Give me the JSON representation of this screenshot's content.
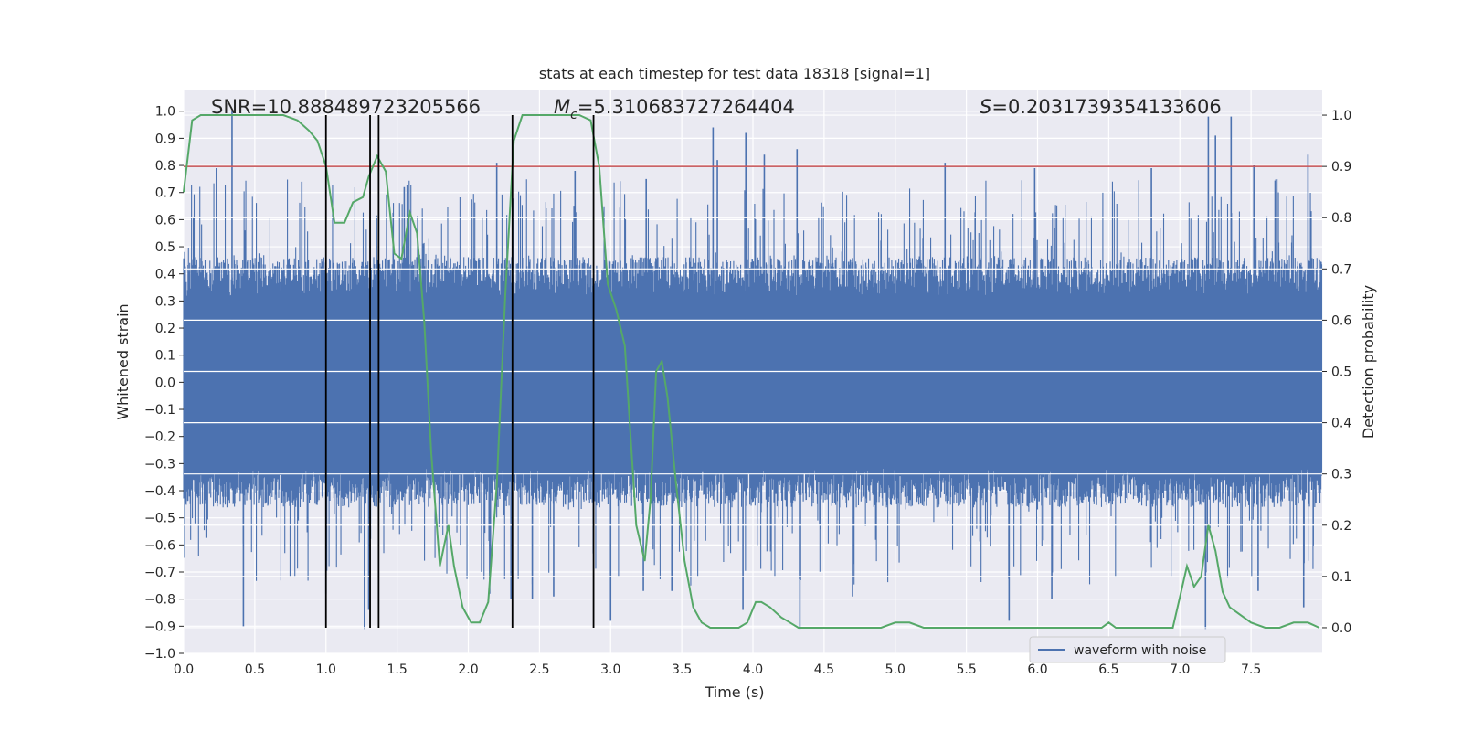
{
  "chart_data": {
    "type": "line",
    "title": "stats at each timestep for test data 18318 [signal=1]",
    "xlabel": "Time (s)",
    "ylabel": "Whitened strain",
    "y2label": "Detection probability",
    "xlim": [
      0,
      8
    ],
    "ylim": [
      -1.0,
      1.08
    ],
    "y2lim": [
      -0.05,
      1.05
    ],
    "x_ticks": [
      "0.0",
      "0.5",
      "1.0",
      "1.5",
      "2.0",
      "2.5",
      "3.0",
      "3.5",
      "4.0",
      "4.5",
      "5.0",
      "5.5",
      "6.0",
      "6.5",
      "7.0",
      "7.5"
    ],
    "y_ticks": [
      "-1.0",
      "-0.9",
      "-0.8",
      "-0.7",
      "-0.6",
      "-0.5",
      "-0.4",
      "-0.3",
      "-0.2",
      "-0.1",
      "0.0",
      "0.1",
      "0.2",
      "0.3",
      "0.4",
      "0.5",
      "0.6",
      "0.7",
      "0.8",
      "0.9",
      "1.0"
    ],
    "y2_ticks": [
      "0.0",
      "0.1",
      "0.2",
      "0.3",
      "0.4",
      "0.5",
      "0.6",
      "0.7",
      "0.8",
      "0.9",
      "1.0"
    ],
    "grid": true,
    "legend": {
      "placement": "lower-right",
      "entries": [
        "waveform with noise"
      ]
    },
    "annotations": {
      "snr": "SNR=10.888489723205566",
      "mc_symbol": "M",
      "mc_sub": "c",
      "mc_value": "=5.310683727264404",
      "s_symbol": "S",
      "s_value": "=0.2031739354133606"
    },
    "series": [
      {
        "name": "waveform with noise",
        "axis": "left",
        "style": "dense-noise",
        "sample_rate_note": "noise band with spikes",
        "typical_amplitude": 0.42,
        "spikes_up": [
          [
            0.34,
            1.0
          ],
          [
            0.23,
            0.79
          ],
          [
            0.83,
            0.74
          ],
          [
            1.55,
            0.72
          ],
          [
            2.2,
            0.81
          ],
          [
            2.75,
            0.78
          ],
          [
            3.25,
            0.75
          ],
          [
            3.75,
            0.82
          ],
          [
            3.72,
            0.94
          ],
          [
            3.95,
            0.92
          ],
          [
            4.08,
            0.84
          ],
          [
            4.31,
            0.86
          ],
          [
            5.35,
            0.81
          ],
          [
            5.98,
            0.79
          ],
          [
            6.8,
            0.79
          ],
          [
            7.2,
            0.98
          ],
          [
            7.25,
            0.91
          ],
          [
            7.36,
            0.98
          ],
          [
            7.52,
            0.8
          ],
          [
            7.9,
            0.84
          ]
        ],
        "spikes_down": [
          [
            0.42,
            -0.9
          ],
          [
            1.0,
            -0.78
          ],
          [
            1.27,
            -0.91
          ],
          [
            1.3,
            -0.84
          ],
          [
            2.15,
            -0.78
          ],
          [
            2.3,
            -0.8
          ],
          [
            2.45,
            -0.8
          ],
          [
            2.6,
            -0.79
          ],
          [
            3.0,
            -0.88
          ],
          [
            3.23,
            -0.77
          ],
          [
            3.43,
            -0.77
          ],
          [
            3.93,
            -0.84
          ],
          [
            4.33,
            -0.91
          ],
          [
            4.7,
            -0.79
          ],
          [
            5.8,
            -0.88
          ],
          [
            6.1,
            -0.8
          ],
          [
            7.18,
            -0.91
          ],
          [
            7.55,
            -0.77
          ],
          [
            7.87,
            -0.83
          ]
        ]
      },
      {
        "name": "",
        "axis": "right",
        "x": [
          0.0,
          0.06,
          0.12,
          0.2,
          0.3,
          0.4,
          0.5,
          0.6,
          0.7,
          0.8,
          0.88,
          0.94,
          1.0,
          1.06,
          1.13,
          1.19,
          1.26,
          1.3,
          1.36,
          1.42,
          1.48,
          1.53,
          1.59,
          1.64,
          1.69,
          1.74,
          1.8,
          1.86,
          1.9,
          1.96,
          2.02,
          2.08,
          2.14,
          2.2,
          2.26,
          2.32,
          2.38,
          2.44,
          2.5,
          2.58,
          2.68,
          2.78,
          2.86,
          2.92,
          2.98,
          3.04,
          3.1,
          3.18,
          3.24,
          3.28,
          3.32,
          3.36,
          3.4,
          3.46,
          3.52,
          3.58,
          3.64,
          3.7,
          3.8,
          3.9,
          3.96,
          4.02,
          4.06,
          4.12,
          4.2,
          4.26,
          4.32,
          4.4,
          4.5,
          4.6,
          4.7,
          4.8,
          4.9,
          5.0,
          5.1,
          5.2,
          5.4,
          5.6,
          5.8,
          6.0,
          6.2,
          6.4,
          6.45,
          6.5,
          6.55,
          6.6,
          6.7,
          6.8,
          6.9,
          6.95,
          7.0,
          7.05,
          7.1,
          7.15,
          7.2,
          7.25,
          7.3,
          7.35,
          7.4,
          7.5,
          7.6,
          7.7,
          7.8,
          7.9,
          7.98
        ],
        "y": [
          0.85,
          0.99,
          1.0,
          1.0,
          1.0,
          1.0,
          1.0,
          1.0,
          1.0,
          0.99,
          0.97,
          0.95,
          0.9,
          0.79,
          0.79,
          0.83,
          0.84,
          0.88,
          0.92,
          0.89,
          0.73,
          0.72,
          0.81,
          0.77,
          0.6,
          0.34,
          0.12,
          0.2,
          0.12,
          0.04,
          0.01,
          0.01,
          0.05,
          0.28,
          0.65,
          0.95,
          1.0,
          1.0,
          1.0,
          1.0,
          1.0,
          1.0,
          0.99,
          0.9,
          0.67,
          0.62,
          0.55,
          0.2,
          0.13,
          0.25,
          0.5,
          0.52,
          0.45,
          0.28,
          0.13,
          0.04,
          0.01,
          0.0,
          0.0,
          0.0,
          0.01,
          0.05,
          0.05,
          0.04,
          0.02,
          0.01,
          0.0,
          0.0,
          0.0,
          0.0,
          0.0,
          0.0,
          0.0,
          0.01,
          0.01,
          0.0,
          0.0,
          0.0,
          0.0,
          0.0,
          0.0,
          0.0,
          0.0,
          0.01,
          0.0,
          0.0,
          0.0,
          0.0,
          0.0,
          0.0,
          0.06,
          0.12,
          0.08,
          0.1,
          0.2,
          0.15,
          0.07,
          0.04,
          0.03,
          0.01,
          0.0,
          0.0,
          0.01,
          0.01,
          0.0
        ]
      }
    ],
    "threshold_line": {
      "axis": "right",
      "value": 0.9,
      "color": "#c44e52"
    },
    "vertical_lines_x": [
      1.0,
      1.31,
      1.37,
      2.31,
      2.88
    ],
    "colors": {
      "waveform": "#4c72b0",
      "probability": "#55a868",
      "vlines": "#000000",
      "plot_bg": "#eaeaf2",
      "grid": "#ffffff"
    }
  }
}
